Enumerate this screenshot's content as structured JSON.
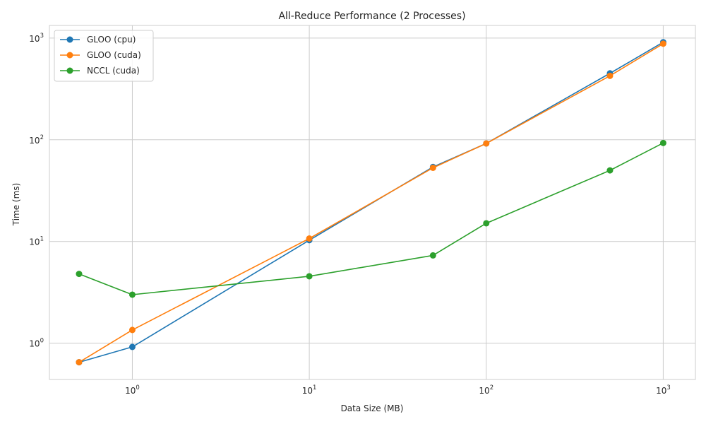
{
  "chart_data": {
    "type": "line",
    "title": "All-Reduce Performance (2 Processes)",
    "xlabel": "Data Size (MB)",
    "ylabel": "Time (ms)",
    "xscale": "log",
    "yscale": "log",
    "xlim": [
      0.34,
      1520
    ],
    "ylim": [
      0.44,
      1330
    ],
    "x_ticks": [
      {
        "base": "10",
        "exp": "0",
        "value": 1
      },
      {
        "base": "10",
        "exp": "1",
        "value": 10
      },
      {
        "base": "10",
        "exp": "2",
        "value": 100
      },
      {
        "base": "10",
        "exp": "3",
        "value": 1000
      }
    ],
    "y_ticks": [
      {
        "base": "10",
        "exp": "0",
        "value": 1
      },
      {
        "base": "10",
        "exp": "1",
        "value": 10
      },
      {
        "base": "10",
        "exp": "2",
        "value": 100
      },
      {
        "base": "10",
        "exp": "3",
        "value": 1000
      }
    ],
    "grid": true,
    "legend_position": "top-left",
    "x": [
      0.5,
      1,
      10,
      50,
      100,
      500,
      1000
    ],
    "series": [
      {
        "name": "GLOO (cpu)",
        "color": "#1f77b4",
        "values": [
          0.65,
          0.92,
          10.3,
          54,
          92,
          450,
          910
        ]
      },
      {
        "name": "GLOO (cuda)",
        "color": "#ff7f0e",
        "values": [
          0.65,
          1.35,
          10.7,
          53,
          92,
          425,
          880
        ]
      },
      {
        "name": "NCCL (cuda)",
        "color": "#2ca02c",
        "values": [
          4.8,
          3.0,
          4.55,
          7.3,
          15.1,
          50,
          93
        ]
      }
    ]
  }
}
